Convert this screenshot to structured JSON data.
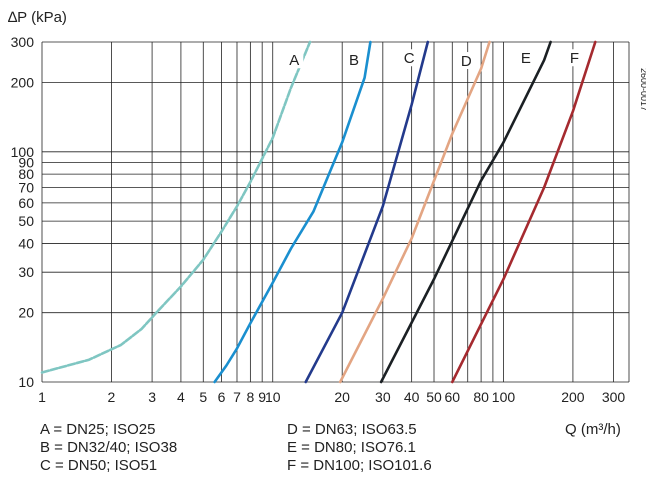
{
  "chart_data": {
    "type": "line",
    "x_scale": "log",
    "y_scale": "log",
    "xlim": [
      1,
      350
    ],
    "ylim": [
      10,
      300
    ],
    "grid": true,
    "ylabel": "∆P (kPa)",
    "xlabel": "Q (m³/h)",
    "reference_code": "2600-0017",
    "x_ticks": [
      {
        "value": 1,
        "label": "1"
      },
      {
        "value": 2,
        "label": "2"
      },
      {
        "value": 3,
        "label": "3"
      },
      {
        "value": 4,
        "label": "4"
      },
      {
        "value": 5,
        "label": "5"
      },
      {
        "value": 6,
        "label": "6"
      },
      {
        "value": 7,
        "label": "7"
      },
      {
        "value": 8,
        "label": "8"
      },
      {
        "value": 9,
        "label": "9"
      },
      {
        "value": 10,
        "label": "10"
      },
      {
        "value": 20,
        "label": "20"
      },
      {
        "value": 30,
        "label": "30"
      },
      {
        "value": 40,
        "label": "40"
      },
      {
        "value": 50,
        "label": "50"
      },
      {
        "value": 60,
        "label": "60"
      },
      {
        "value": 80,
        "label": "80"
      },
      {
        "value": 100,
        "label": "100"
      },
      {
        "value": 200,
        "label": "200"
      },
      {
        "value": 300,
        "label": "300"
      }
    ],
    "y_ticks": [
      {
        "value": 10,
        "label": "10"
      },
      {
        "value": 20,
        "label": "20"
      },
      {
        "value": 30,
        "label": "30"
      },
      {
        "value": 40,
        "label": "40"
      },
      {
        "value": 50,
        "label": "50"
      },
      {
        "value": 60,
        "label": "60"
      },
      {
        "value": 70,
        "label": "70"
      },
      {
        "value": 80,
        "label": "80"
      },
      {
        "value": 90,
        "label": "90"
      },
      {
        "value": 100,
        "label": "100"
      },
      {
        "value": 200,
        "label": "200"
      },
      {
        "value": 300,
        "label": "300"
      }
    ],
    "series": [
      {
        "name": "A",
        "color": "#7fc6c2",
        "dashed": true,
        "x": [
          1,
          1.6,
          2.2,
          2.7,
          3.2,
          4,
          5,
          6,
          7,
          8,
          10,
          12,
          14.5
        ],
        "y": [
          11,
          12.5,
          14.5,
          17,
          20.5,
          26,
          34,
          45,
          58,
          74,
          115,
          190,
          300
        ]
      },
      {
        "name": "B",
        "color": "#1a8fcf",
        "dashed": false,
        "x": [
          5.6,
          6.3,
          7,
          8,
          10,
          12,
          15,
          20,
          25,
          26.5
        ],
        "y": [
          10,
          11.8,
          14,
          18,
          27,
          38,
          55,
          110,
          210,
          300
        ]
      },
      {
        "name": "C",
        "color": "#233a8c",
        "dashed": false,
        "x": [
          13.9,
          20,
          30,
          40,
          47
        ],
        "y": [
          10,
          20,
          58,
          160,
          300
        ]
      },
      {
        "name": "D",
        "color": "#e3a583",
        "dashed": false,
        "x": [
          19.6,
          30,
          40,
          60,
          80,
          87
        ],
        "y": [
          10,
          23,
          42,
          120,
          230,
          300
        ]
      },
      {
        "name": "E",
        "color": "#1b2024",
        "dashed": false,
        "x": [
          29.5,
          50,
          80,
          100,
          150,
          160
        ],
        "y": [
          10,
          28,
          75,
          110,
          250,
          300
        ]
      },
      {
        "name": "F",
        "color": "#a52a2f",
        "dashed": false,
        "x": [
          60,
          100,
          150,
          200,
          250
        ],
        "y": [
          10,
          28,
          70,
          150,
          300
        ]
      }
    ],
    "curve_labels": [
      {
        "text": "A",
        "x": 12.4,
        "y": 250
      },
      {
        "text": "B",
        "x": 22.5,
        "y": 250
      },
      {
        "text": "C",
        "x": 39,
        "y": 255
      },
      {
        "text": "D",
        "x": 69,
        "y": 248
      },
      {
        "text": "E",
        "x": 125,
        "y": 255
      },
      {
        "text": "F",
        "x": 203,
        "y": 255
      }
    ],
    "legend": [
      {
        "text": "A = DN25; ISO25"
      },
      {
        "text": "B = DN32/40; ISO38"
      },
      {
        "text": "C = DN50; ISO51"
      },
      {
        "text": "D = DN63; ISO63.5"
      },
      {
        "text": "E = DN80; ISO76.1"
      },
      {
        "text": "F = DN100; ISO101.6"
      }
    ]
  }
}
